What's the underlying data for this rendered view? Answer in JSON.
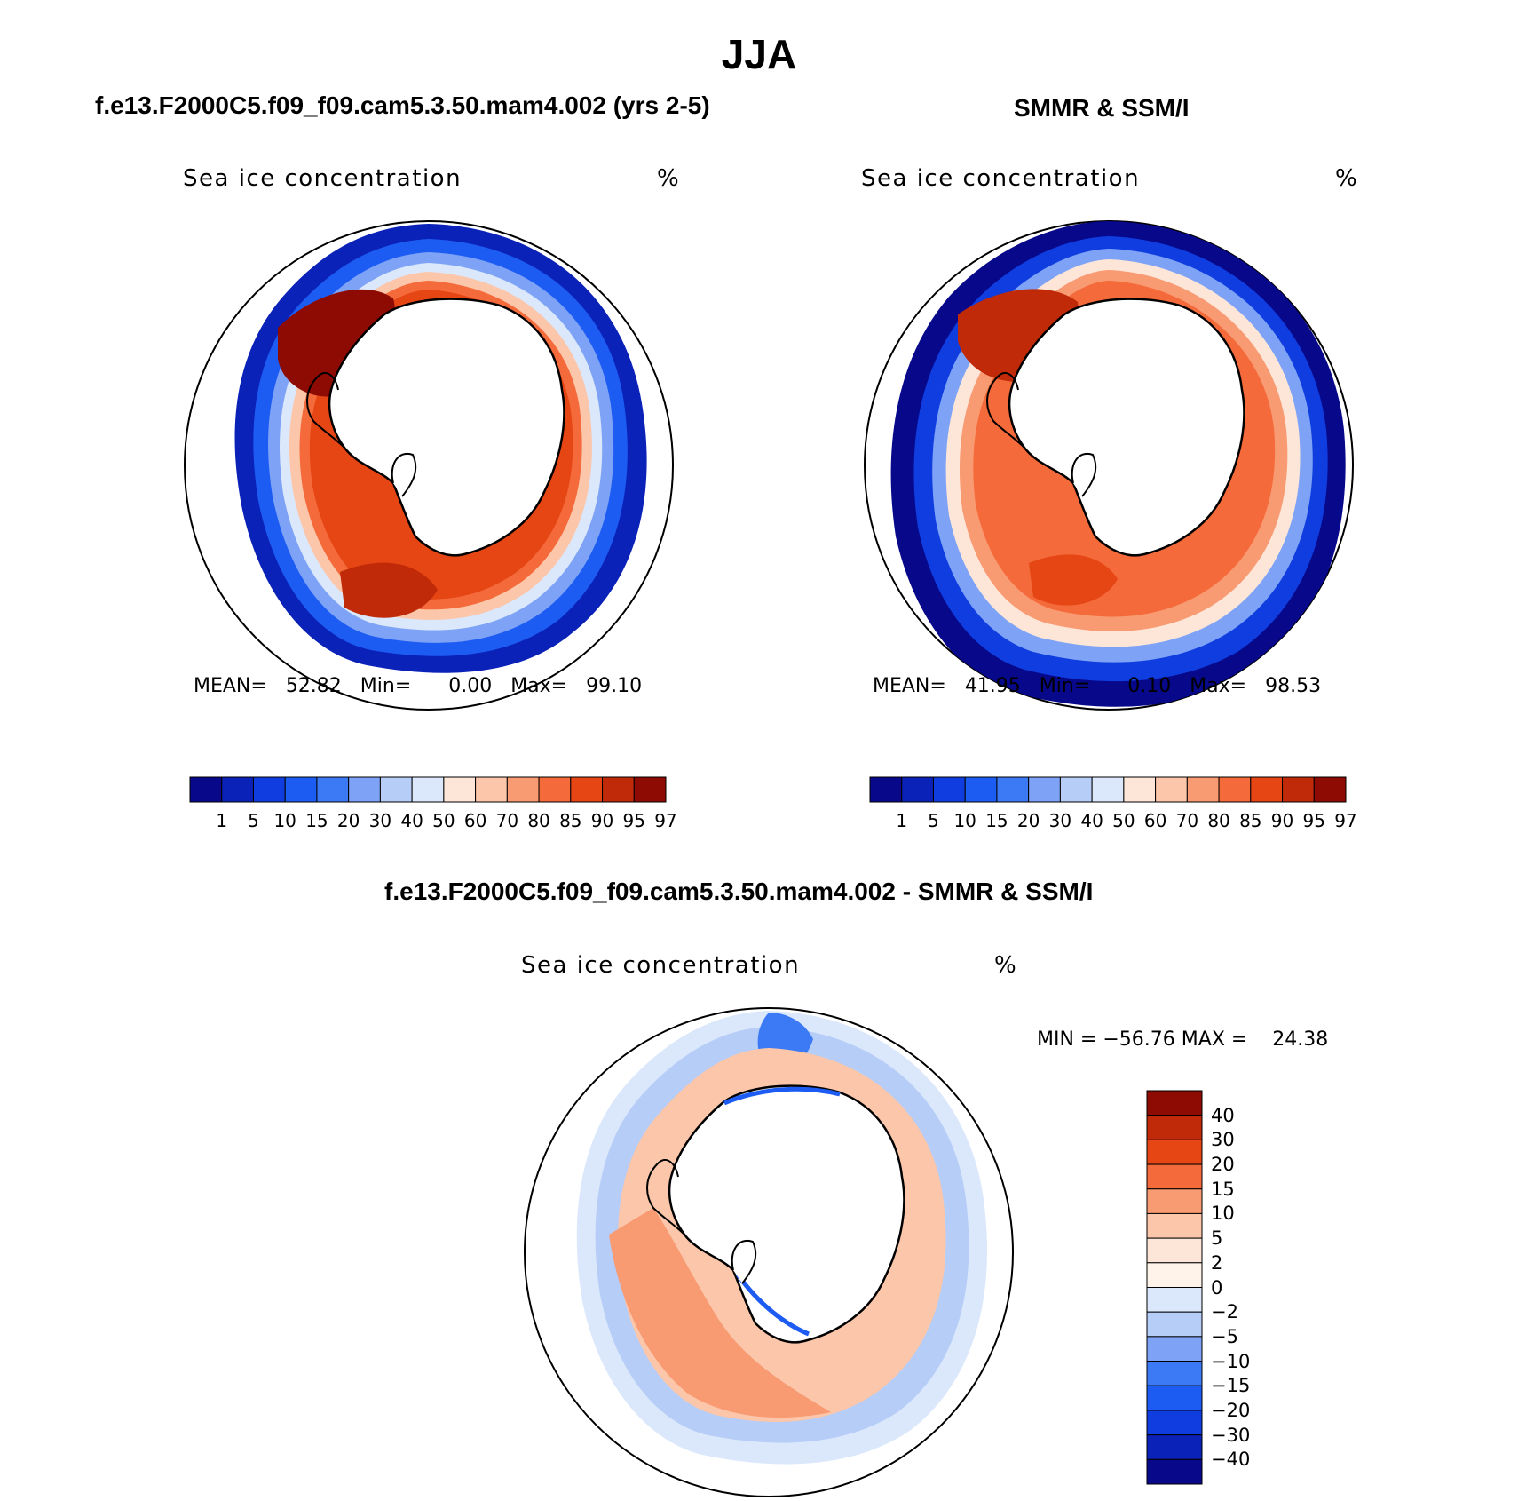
{
  "title": "JJA",
  "panels": [
    {
      "id": "model",
      "header": "f.e13.F2000C5.f09_f09.cam5.3.50.mam4.002 (yrs 2-5)",
      "variable": "Sea ice concentration",
      "units": "%",
      "stats": {
        "mean_label": "MEAN=",
        "mean": "52.82",
        "min_label": "Min=",
        "min": "0.00",
        "max_label": "Max=",
        "max": "99.10"
      }
    },
    {
      "id": "obs",
      "header": "SMMR & SSM/I",
      "variable": "Sea ice concentration",
      "units": "%",
      "stats": {
        "mean_label": "MEAN=",
        "mean": "41.95",
        "min_label": "Min=",
        "min": "0.10",
        "max_label": "Max=",
        "max": "98.53"
      }
    },
    {
      "id": "diff",
      "header": "f.e13.F2000C5.f09_f09.cam5.3.50.mam4.002 - SMMR & SSM/I",
      "variable": "Sea ice concentration",
      "units": "%",
      "stats": {
        "min_label": "MIN =",
        "min": "−56.76",
        "max_label": "MAX =",
        "max": "24.38"
      }
    }
  ],
  "conc_colorbar": {
    "levels": [
      "1",
      "5",
      "10",
      "15",
      "20",
      "30",
      "40",
      "50",
      "60",
      "70",
      "80",
      "85",
      "90",
      "95",
      "97"
    ],
    "colors": [
      "#08088a",
      "#0b22b8",
      "#0f3ddf",
      "#1d5cf2",
      "#3c7af5",
      "#7ea3f6",
      "#b6cdf7",
      "#dbe8fb",
      "#fde6d7",
      "#fbc6aa",
      "#f89a72",
      "#f46a3a",
      "#e64514",
      "#c02a08",
      "#8e0b04"
    ]
  },
  "diff_colorbar": {
    "levels": [
      "40",
      "30",
      "20",
      "15",
      "10",
      "5",
      "2",
      "0",
      "−2",
      "−5",
      "−10",
      "−15",
      "−20",
      "−30",
      "−40"
    ],
    "colors": [
      "#8e0b04",
      "#c02a08",
      "#e64514",
      "#f46a3a",
      "#f89a72",
      "#fbc6aa",
      "#fde6d7",
      "#fff3ea",
      "#dbe8fb",
      "#b6cdf7",
      "#7ea3f6",
      "#3c7af5",
      "#1d5cf2",
      "#0f3ddf",
      "#0b22b8",
      "#08088a"
    ]
  }
}
